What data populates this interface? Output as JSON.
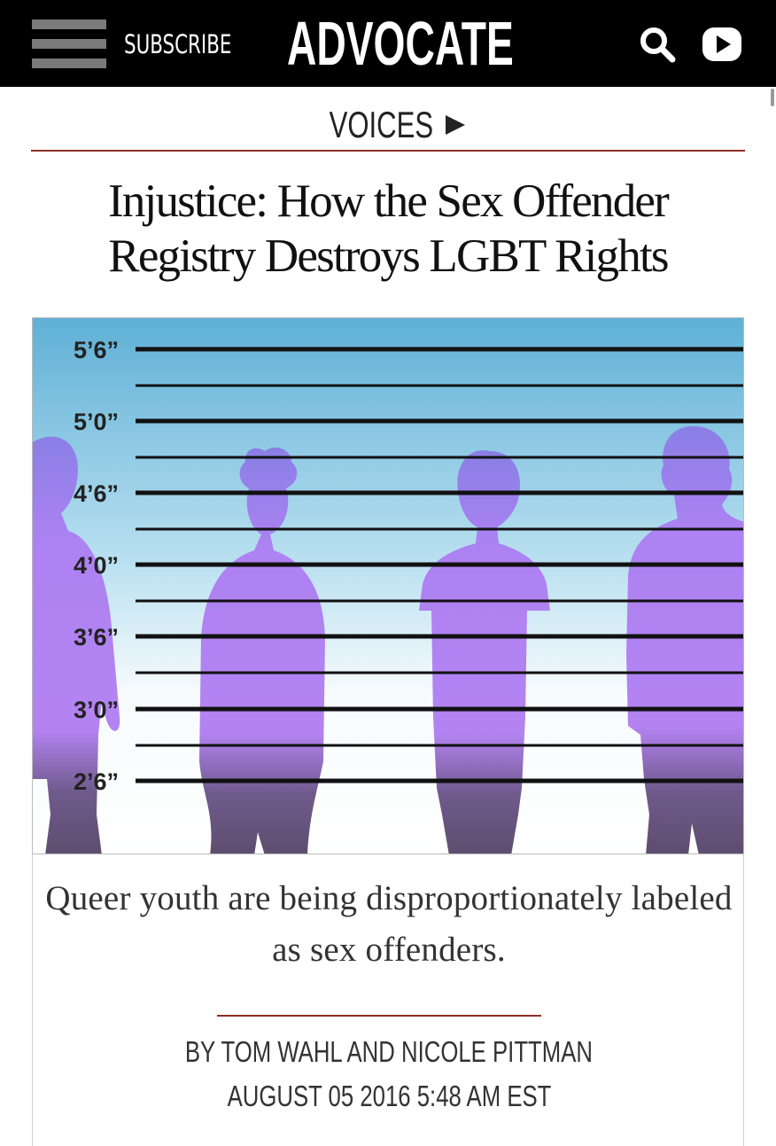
{
  "header": {
    "subscribe_label": "SUBSCRIBE",
    "logo_text": "ADVOCATE",
    "icons": [
      "menu-icon",
      "search-icon",
      "play-icon"
    ]
  },
  "section": {
    "label": "VOICES"
  },
  "article": {
    "headline": "Injustice: How the Sex Offender Registry Destroys LGBT Rights",
    "hero_height_labels": [
      "5’6”",
      "5’0”",
      "4’6”",
      "4’0”",
      "3’6”",
      "3’0”",
      "2’6”"
    ],
    "dek": "Queer youth are being disproportionately labeled as sex offenders.",
    "byline_prefix": "BY",
    "authors": "TOM WAHL AND NICOLE PITTMAN",
    "dateline": "AUGUST 05 2016 5:48 AM EST"
  },
  "colors": {
    "topbar": "#000000",
    "accent_rule": "#8b2e24",
    "silhouette": "#a87ff0",
    "sky_top": "#5fb0d6"
  }
}
